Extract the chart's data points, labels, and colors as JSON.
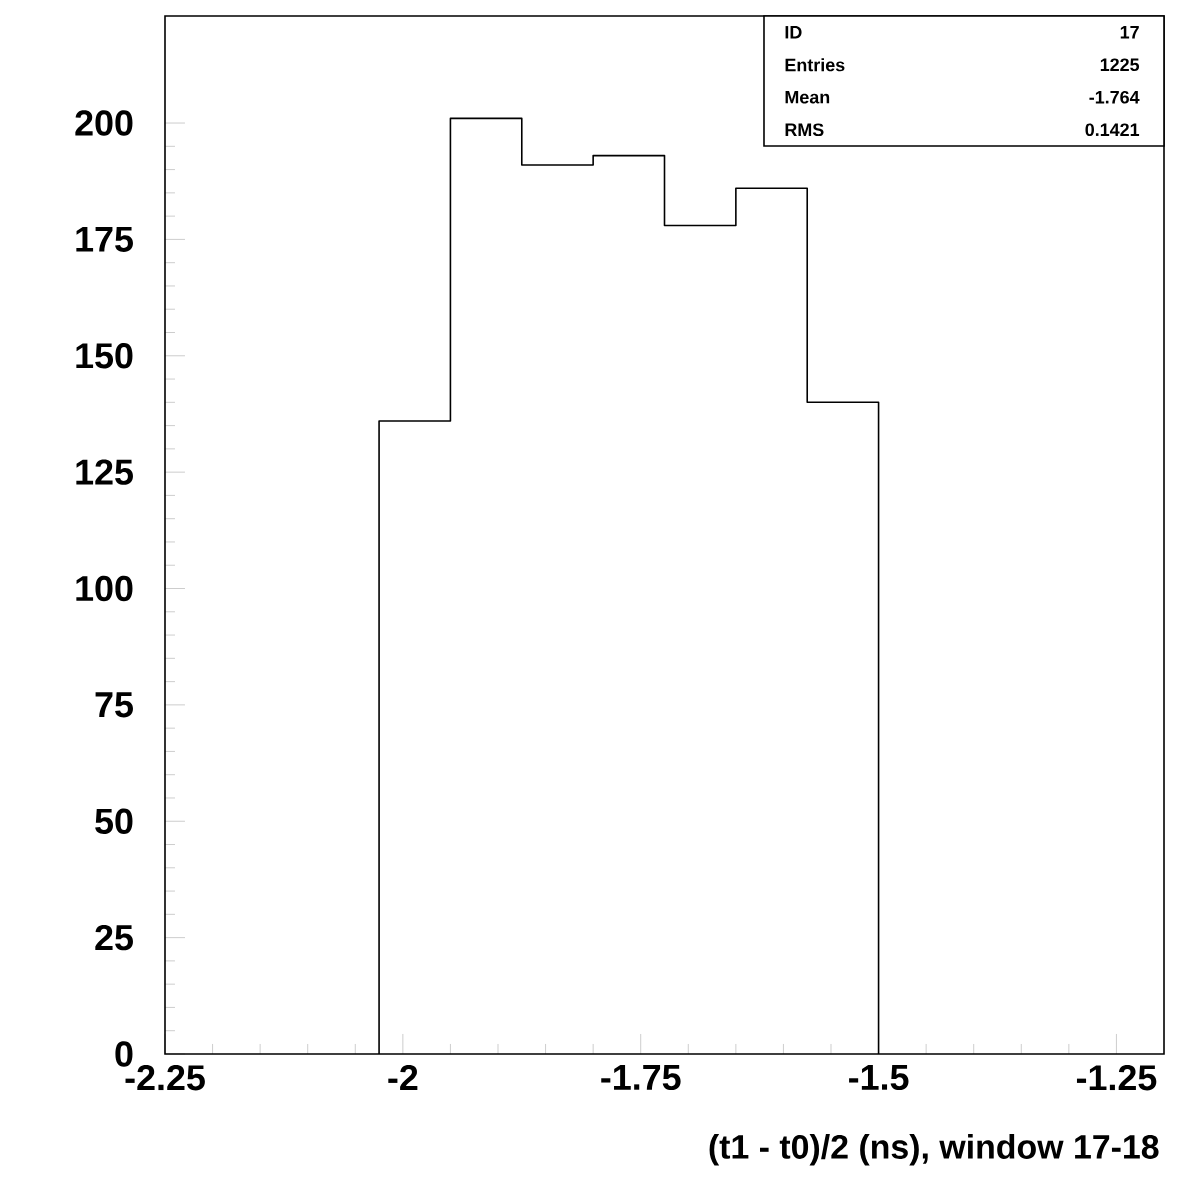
{
  "chart_data": {
    "type": "histogram",
    "xlabel": "(t1 - t0)/2 (ns), window 17-18",
    "bins": [
      -2.025,
      -1.95,
      -1.875,
      -1.8,
      -1.725,
      -1.65,
      -1.575,
      -1.5
    ],
    "values": [
      136,
      201,
      191,
      193,
      178,
      186,
      140
    ],
    "color": "#000000",
    "xlim": [
      -2.25,
      -1.2
    ],
    "ylim": [
      0,
      223
    ],
    "xticks": [
      -2.25,
      -2,
      -1.75,
      -1.5,
      -1.25
    ],
    "yticks": [
      0,
      25,
      50,
      75,
      100,
      125,
      150,
      175,
      200
    ],
    "grid": false,
    "annotations": [
      "ID",
      "17",
      "Entries",
      "1225",
      "Mean",
      "-1.764",
      "RMS",
      "0.1421"
    ]
  }
}
